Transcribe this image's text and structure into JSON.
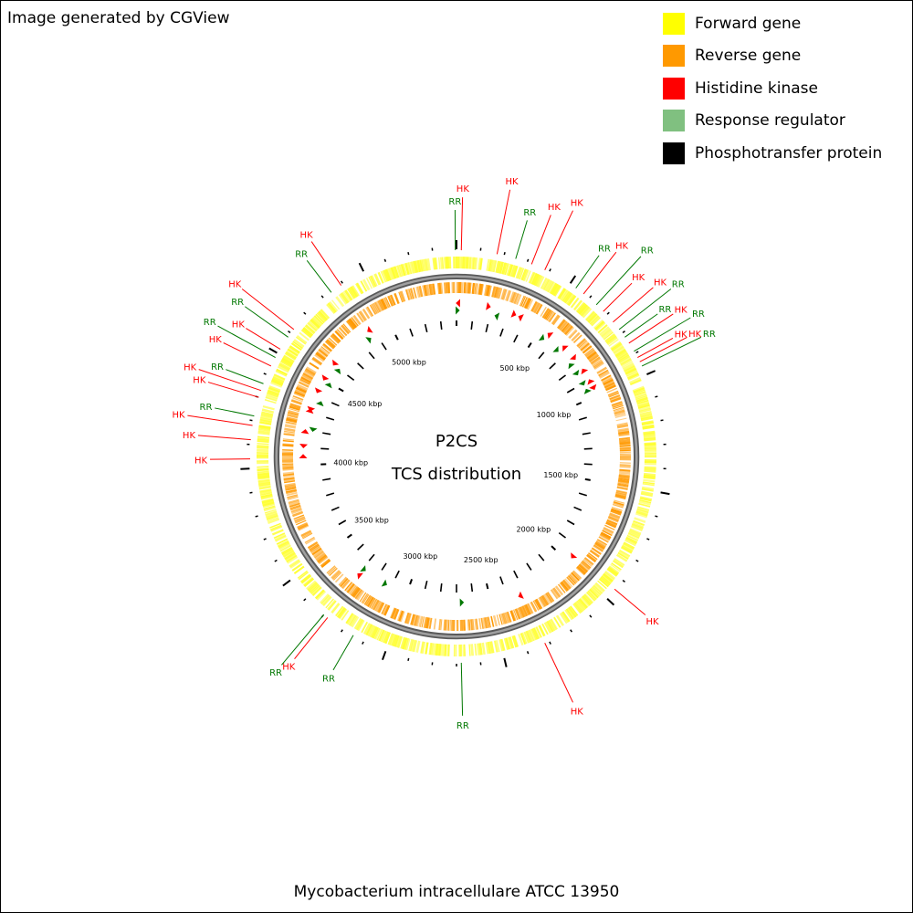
{
  "credit": "Image generated by CGView",
  "caption": "Mycobacterium intracellulare ATCC 13950",
  "center_title": "P2CS",
  "center_subtitle": "TCS distribution",
  "legend": [
    {
      "label": "Forward gene",
      "color": "#ffff00"
    },
    {
      "label": "Reverse gene",
      "color": "#ff9900"
    },
    {
      "label": "Histidine kinase",
      "color": "#ff0000"
    },
    {
      "label": "Response regulator",
      "color": "#80c080"
    },
    {
      "label": "Phosphotransfer protein",
      "color": "#000000"
    }
  ],
  "colors": {
    "forward": "#ffff33",
    "reverse": "#ff9900",
    "hk": "#ff0000",
    "rr": "#007700",
    "backbone": "#777777"
  },
  "genome_length_kbp": 5400,
  "ruler_labels": [
    {
      "kbp": 500,
      "label": "500 kbp"
    },
    {
      "kbp": 1000,
      "label": "1000 kbp"
    },
    {
      "kbp": 1500,
      "label": "1500 kbp"
    },
    {
      "kbp": 2000,
      "label": "2000 kbp"
    },
    {
      "kbp": 2500,
      "label": "2500 kbp"
    },
    {
      "kbp": 3000,
      "label": "3000 kbp"
    },
    {
      "kbp": 3500,
      "label": "3500 kbp"
    },
    {
      "kbp": 4000,
      "label": "4000 kbp"
    },
    {
      "kbp": 4500,
      "label": "4500 kbp"
    },
    {
      "kbp": 5000,
      "label": "5000 kbp"
    }
  ],
  "features": [
    {
      "label": "RR",
      "type": "rr",
      "kbp": 5395
    },
    {
      "label": "HK",
      "type": "hk",
      "kbp": 20
    },
    {
      "label": "HK",
      "type": "hk",
      "kbp": 170
    },
    {
      "label": "RR",
      "type": "rr",
      "kbp": 250
    },
    {
      "label": "HK",
      "type": "hk",
      "kbp": 320
    },
    {
      "label": "HK",
      "type": "hk",
      "kbp": 380
    },
    {
      "label": "RR",
      "type": "rr",
      "kbp": 530
    },
    {
      "label": "HK",
      "type": "hk",
      "kbp": 570
    },
    {
      "label": "RR",
      "type": "rr",
      "kbp": 640
    },
    {
      "label": "HK",
      "type": "hk",
      "kbp": 680
    },
    {
      "label": "HK",
      "type": "hk",
      "kbp": 740
    },
    {
      "label": "RR",
      "type": "rr",
      "kbp": 780
    },
    {
      "label": "RR",
      "type": "rr",
      "kbp": 820
    },
    {
      "label": "HK",
      "type": "hk",
      "kbp": 850
    },
    {
      "label": "RR",
      "type": "rr",
      "kbp": 890
    },
    {
      "label": "HK",
      "type": "hk",
      "kbp": 920
    },
    {
      "label": "HK",
      "type": "hk",
      "kbp": 940
    },
    {
      "label": "RR",
      "type": "rr",
      "kbp": 960
    },
    {
      "label": "HK",
      "type": "hk",
      "kbp": 1950
    },
    {
      "label": "RR",
      "type": "rr",
      "kbp": 2680
    },
    {
      "label": "HK",
      "type": "hk",
      "kbp": 2320
    },
    {
      "label": "RR",
      "type": "rr",
      "kbp": 3150
    },
    {
      "label": "HK",
      "type": "hk",
      "kbp": 3280
    },
    {
      "label": "RR",
      "type": "rr",
      "kbp": 3300
    },
    {
      "label": "HK",
      "type": "hk",
      "kbp": 4040
    },
    {
      "label": "HK",
      "type": "hk",
      "kbp": 4120
    },
    {
      "label": "HK",
      "type": "hk",
      "kbp": 4180
    },
    {
      "label": "RR",
      "type": "rr",
      "kbp": 4220
    },
    {
      "label": "HK",
      "type": "hk",
      "kbp": 4300
    },
    {
      "label": "HK",
      "type": "hk",
      "kbp": 4330
    },
    {
      "label": "RR",
      "type": "rr",
      "kbp": 4360
    },
    {
      "label": "HK",
      "type": "hk",
      "kbp": 4440
    },
    {
      "label": "RR",
      "type": "rr",
      "kbp": 4480
    },
    {
      "label": "HK",
      "type": "hk",
      "kbp": 4520
    },
    {
      "label": "RR",
      "type": "rr",
      "kbp": 4580
    },
    {
      "label": "HK",
      "type": "hk",
      "kbp": 4620
    },
    {
      "label": "RR",
      "type": "rr",
      "kbp": 4840
    },
    {
      "label": "HK",
      "type": "hk",
      "kbp": 4890
    }
  ]
}
